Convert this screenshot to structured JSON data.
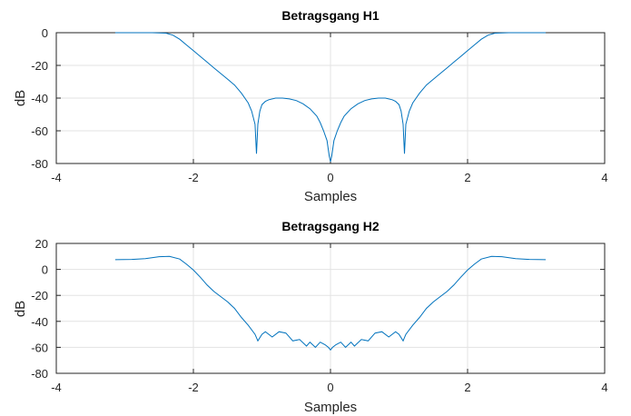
{
  "chart_data": [
    {
      "type": "line",
      "title": "Betragsgang H1",
      "xlabel": "Samples",
      "ylabel": "dB",
      "xlim": [
        -4,
        4
      ],
      "ylim": [
        -80,
        0
      ],
      "xticks": [
        "-4",
        "-2",
        "0",
        "2",
        "4"
      ],
      "yticks": [
        "0",
        "-20",
        "-40",
        "-60",
        "-80"
      ],
      "grid": true,
      "color": "#0072bd",
      "series": [
        {
          "x": [
            -3.14,
            -2.9,
            -2.6,
            -2.4,
            -2.3,
            -2.2,
            -2.1,
            -2.0,
            -1.9,
            -1.8,
            -1.7,
            -1.6,
            -1.5,
            -1.4,
            -1.3,
            -1.2,
            -1.15,
            -1.1,
            -1.08,
            -1.06,
            -1.03,
            -1.0,
            -0.95,
            -0.9,
            -0.8,
            -0.7,
            -0.6,
            -0.5,
            -0.4,
            -0.3,
            -0.2,
            -0.15,
            -0.1,
            -0.05,
            -0.02,
            0.0,
            0.02,
            0.05,
            0.1,
            0.15,
            0.2,
            0.3,
            0.4,
            0.5,
            0.6,
            0.7,
            0.8,
            0.9,
            0.95,
            1.0,
            1.03,
            1.06,
            1.08,
            1.1,
            1.15,
            1.2,
            1.3,
            1.4,
            1.5,
            1.6,
            1.7,
            1.8,
            1.9,
            2.0,
            2.1,
            2.2,
            2.3,
            2.4,
            2.6,
            2.9,
            3.14
          ],
          "y": [
            0,
            0,
            0,
            -0.3,
            -1.5,
            -4,
            -7.5,
            -11,
            -14.5,
            -18,
            -21.5,
            -25,
            -28.5,
            -32,
            -37,
            -43,
            -48,
            -56,
            -74,
            -56,
            -48,
            -44,
            -42,
            -41,
            -40,
            -40,
            -40.5,
            -41.5,
            -43.5,
            -46.5,
            -51,
            -55,
            -60,
            -66,
            -75,
            -79,
            -75,
            -66,
            -60,
            -55,
            -51,
            -46.5,
            -43.5,
            -41.5,
            -40.5,
            -40,
            -40,
            -41,
            -42,
            -44,
            -48,
            -56,
            -74,
            -56,
            -48,
            -43,
            -37,
            -32,
            -28.5,
            -25,
            -21.5,
            -18,
            -14.5,
            -11,
            -7.5,
            -4,
            -1.5,
            -0.3,
            0,
            0,
            0
          ]
        }
      ]
    },
    {
      "type": "line",
      "title": "Betragsgang H2",
      "xlabel": "Samples",
      "ylabel": "dB",
      "xlim": [
        -4,
        4
      ],
      "ylim": [
        -80,
        20
      ],
      "xticks": [
        "-4",
        "-2",
        "0",
        "2",
        "4"
      ],
      "yticks": [
        "20",
        "0",
        "-20",
        "-40",
        "-60",
        "-80"
      ],
      "grid": true,
      "color": "#0072bd",
      "series": [
        {
          "x": [
            -3.14,
            -2.9,
            -2.7,
            -2.5,
            -2.35,
            -2.2,
            -2.1,
            -2.0,
            -1.9,
            -1.8,
            -1.7,
            -1.6,
            -1.5,
            -1.4,
            -1.3,
            -1.2,
            -1.1,
            -1.06,
            -1.0,
            -0.95,
            -0.85,
            -0.75,
            -0.65,
            -0.55,
            -0.45,
            -0.35,
            -0.3,
            -0.22,
            -0.15,
            -0.08,
            -0.03,
            0.0,
            0.03,
            0.08,
            0.15,
            0.22,
            0.3,
            0.35,
            0.45,
            0.55,
            0.65,
            0.75,
            0.85,
            0.95,
            1.0,
            1.06,
            1.1,
            1.2,
            1.3,
            1.4,
            1.5,
            1.6,
            1.7,
            1.8,
            1.9,
            2.0,
            2.1,
            2.2,
            2.35,
            2.5,
            2.7,
            2.9,
            3.14
          ],
          "y": [
            7.5,
            7.7,
            8.3,
            9.8,
            10,
            8,
            4,
            -0.5,
            -6,
            -12,
            -17,
            -21,
            -25,
            -30,
            -37,
            -43,
            -50,
            -55,
            -50,
            -48,
            -52,
            -48,
            -49,
            -55,
            -54,
            -59,
            -56,
            -60,
            -56,
            -58,
            -60,
            -62,
            -60,
            -58,
            -56,
            -60,
            -56,
            -59,
            -54,
            -55,
            -49,
            -48,
            -52,
            -48,
            -50,
            -55,
            -50,
            -43,
            -37,
            -30,
            -25,
            -21,
            -17,
            -12,
            -6,
            -0.5,
            4,
            8,
            10,
            9.8,
            8.3,
            7.7,
            7.5
          ]
        }
      ]
    }
  ]
}
